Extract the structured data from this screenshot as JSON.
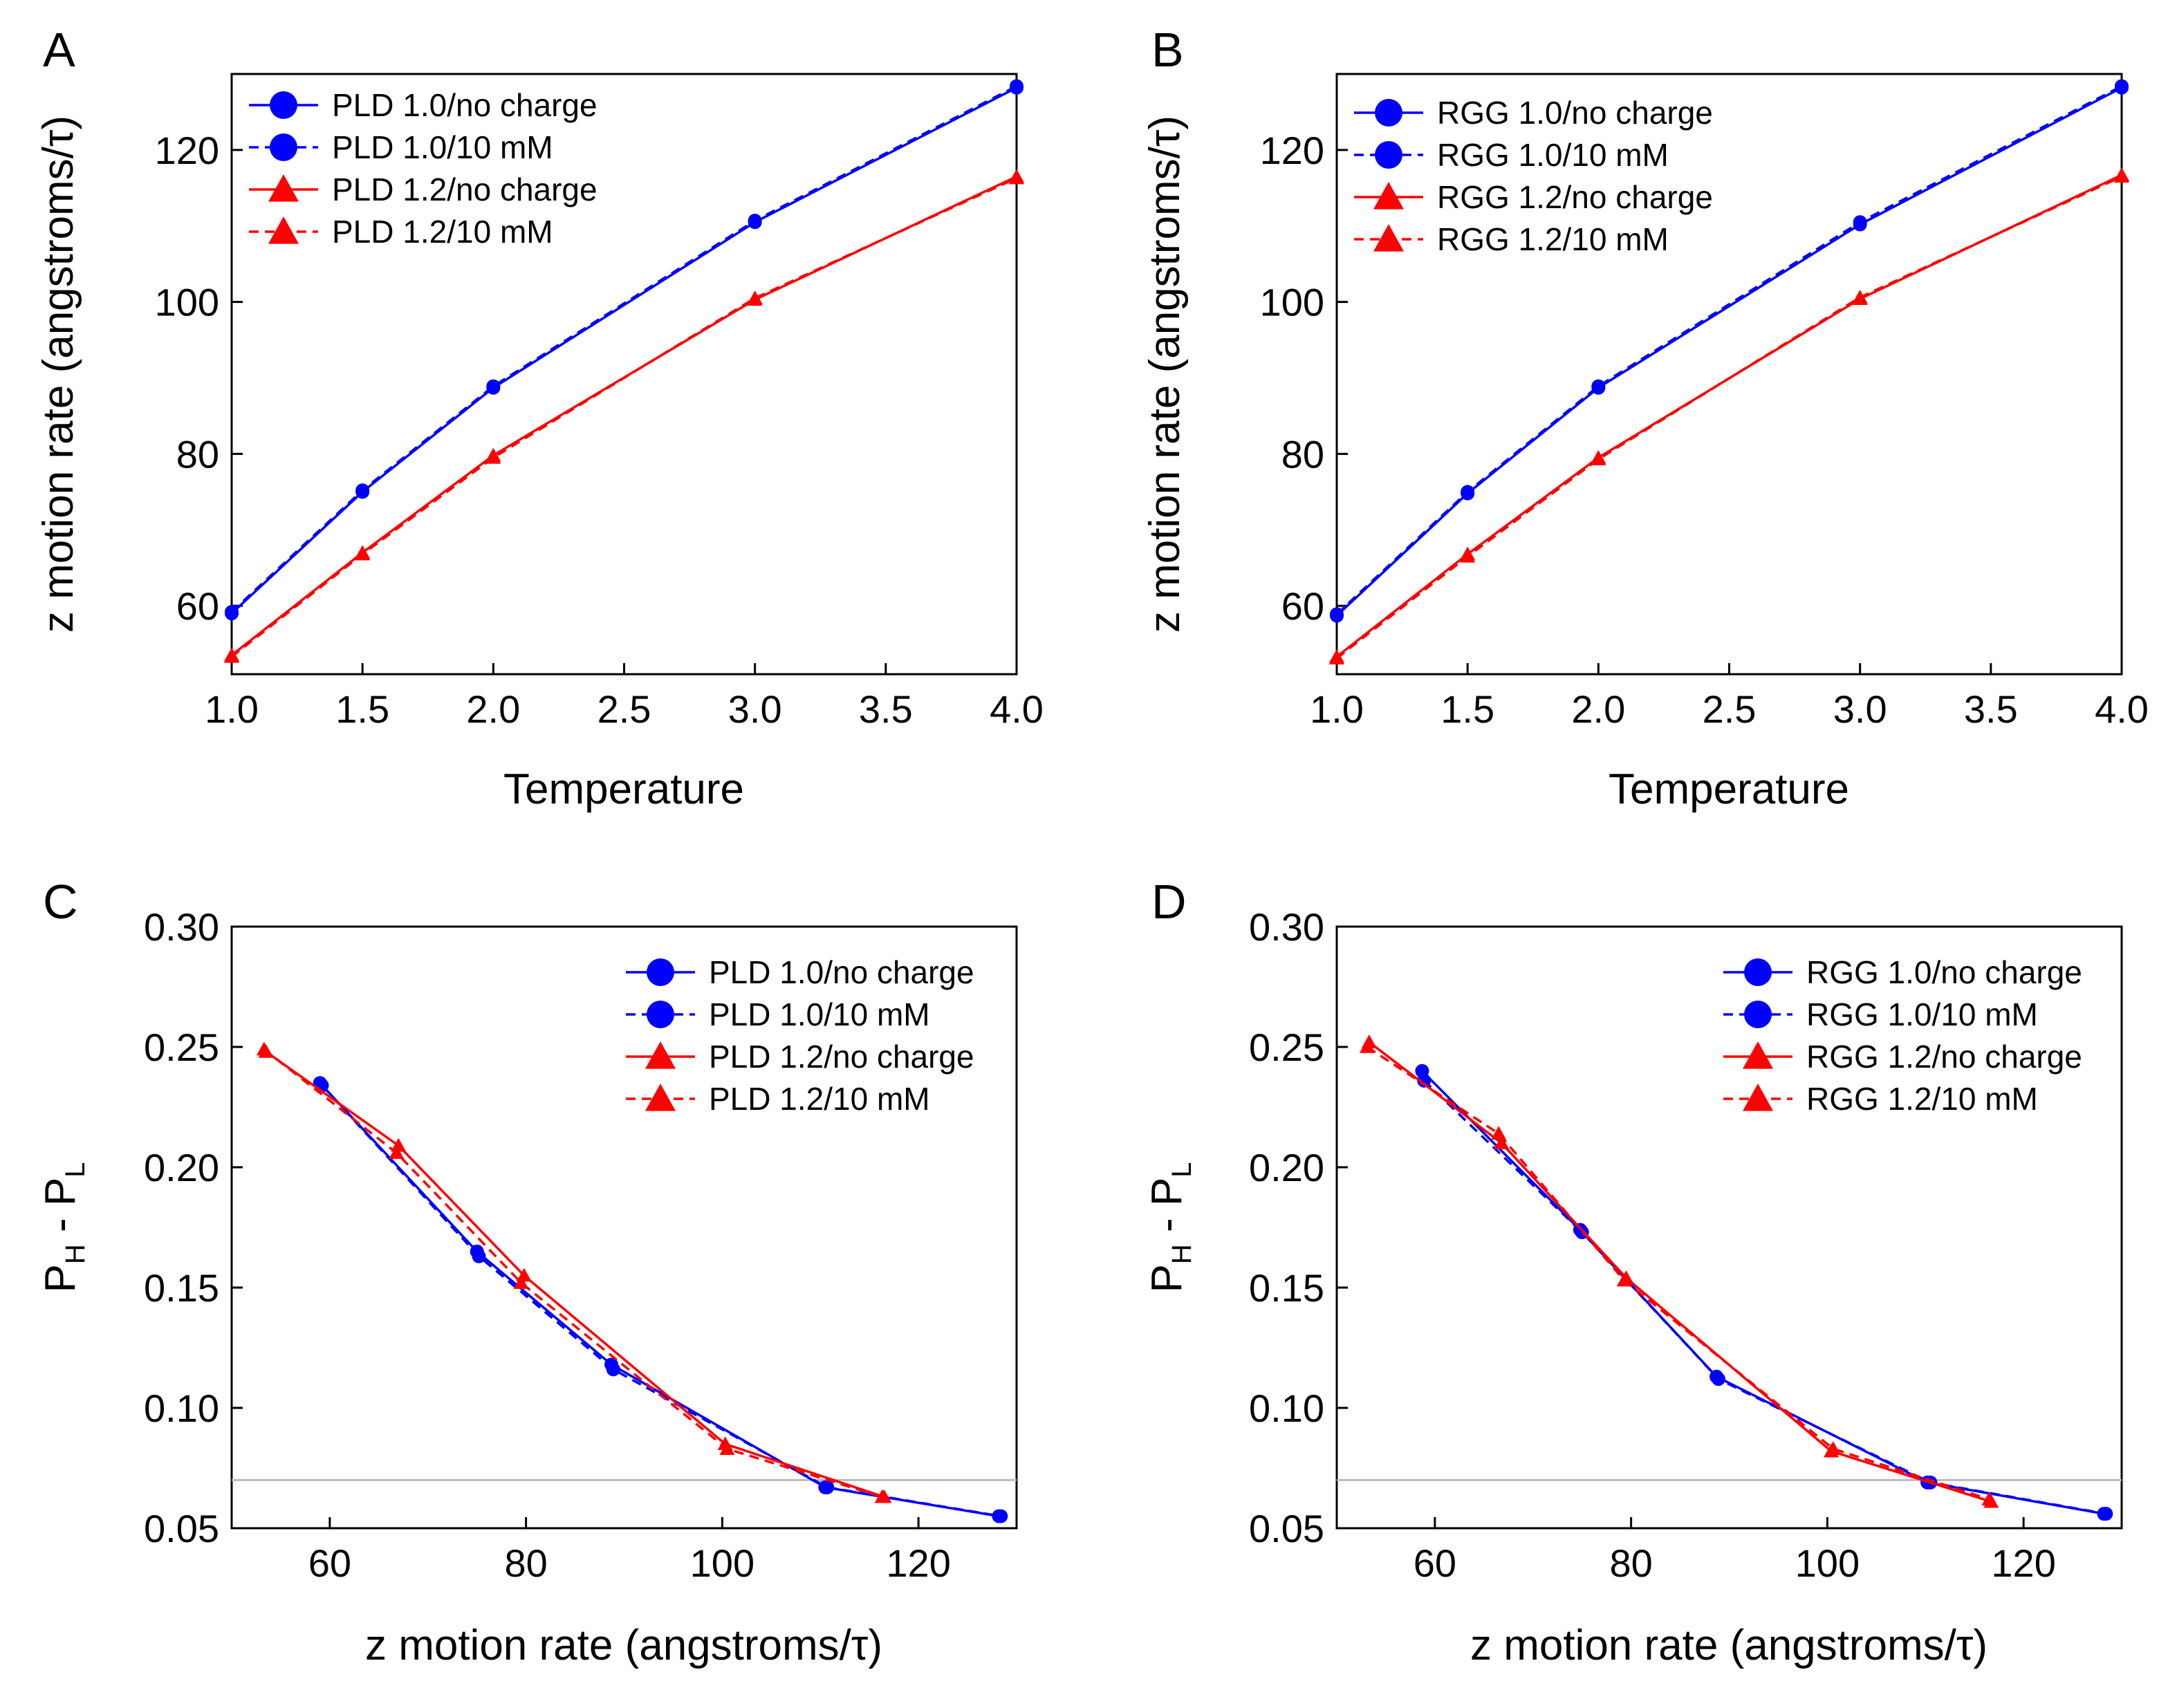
{
  "figure": {
    "colors": {
      "blue": "#0000FF",
      "red": "#FF0000",
      "ref_line": "#BBBBBB",
      "axis": "#000000"
    }
  },
  "chart_data": [
    {
      "id": "A",
      "panel_label": "A",
      "type": "line",
      "xlabel": "Temperature",
      "ylabel": "z motion rate (angstroms/τ)",
      "xlim": [
        1.0,
        4.0
      ],
      "ylim": [
        51,
        130
      ],
      "xticks": [
        1.0,
        1.5,
        2.0,
        2.5,
        3.0,
        3.5,
        4.0
      ],
      "xtick_labels": [
        "1.0",
        "1.5",
        "2.0",
        "2.5",
        "3.0",
        "3.5",
        "4.0"
      ],
      "yticks": [
        60,
        80,
        100,
        120
      ],
      "ytick_labels": [
        "60",
        "80",
        "100",
        "120"
      ],
      "legend_position": "top-left",
      "series": [
        {
          "name": "PLD 1.0/no charge",
          "color": "#0000FF",
          "style": "solid",
          "marker": "circle",
          "x": [
            1.0,
            1.5,
            2.0,
            3.0,
            4.0
          ],
          "y": [
            59.0,
            75.0,
            88.7,
            110.5,
            128.2
          ]
        },
        {
          "name": "PLD 1.0/10 mM",
          "color": "#0000FF",
          "style": "dashed",
          "marker": "circle",
          "x": [
            1.0,
            1.5,
            2.0,
            3.0,
            4.0
          ],
          "y": [
            59.2,
            75.2,
            88.9,
            110.7,
            128.4
          ]
        },
        {
          "name": "PLD 1.2/no charge",
          "color": "#FF0000",
          "style": "solid",
          "marker": "triangle",
          "x": [
            1.0,
            1.5,
            2.0,
            3.0,
            4.0
          ],
          "y": [
            53.5,
            67.0,
            79.8,
            100.3,
            116.5
          ]
        },
        {
          "name": "PLD 1.2/10 mM",
          "color": "#FF0000",
          "style": "dashed",
          "marker": "triangle",
          "x": [
            1.0,
            1.5,
            2.0,
            3.0,
            4.0
          ],
          "y": [
            53.3,
            66.8,
            79.5,
            100.5,
            116.3
          ]
        }
      ]
    },
    {
      "id": "B",
      "panel_label": "B",
      "type": "line",
      "xlabel": "Temperature",
      "ylabel": "z motion rate (angstroms/τ)",
      "xlim": [
        1.0,
        4.0
      ],
      "ylim": [
        51,
        130
      ],
      "xticks": [
        1.0,
        1.5,
        2.0,
        2.5,
        3.0,
        3.5,
        4.0
      ],
      "xtick_labels": [
        "1.0",
        "1.5",
        "2.0",
        "2.5",
        "3.0",
        "3.5",
        "4.0"
      ],
      "yticks": [
        60,
        80,
        100,
        120
      ],
      "ytick_labels": [
        "60",
        "80",
        "100",
        "120"
      ],
      "legend_position": "top-left",
      "series": [
        {
          "name": "RGG 1.0/no charge",
          "color": "#0000FF",
          "style": "solid",
          "marker": "circle",
          "x": [
            1.0,
            1.5,
            2.0,
            3.0,
            4.0
          ],
          "y": [
            58.7,
            74.8,
            88.7,
            110.2,
            128.2
          ]
        },
        {
          "name": "RGG 1.0/10 mM",
          "color": "#0000FF",
          "style": "dashed",
          "marker": "circle",
          "x": [
            1.0,
            1.5,
            2.0,
            3.0,
            4.0
          ],
          "y": [
            58.9,
            75.0,
            88.9,
            110.5,
            128.4
          ]
        },
        {
          "name": "RGG 1.2/no charge",
          "color": "#FF0000",
          "style": "solid",
          "marker": "triangle",
          "x": [
            1.0,
            1.5,
            2.0,
            3.0,
            4.0
          ],
          "y": [
            53.3,
            66.8,
            79.5,
            100.4,
            116.7
          ]
        },
        {
          "name": "RGG 1.2/10 mM",
          "color": "#FF0000",
          "style": "dashed",
          "marker": "triangle",
          "x": [
            1.0,
            1.5,
            2.0,
            3.0,
            4.0
          ],
          "y": [
            53.1,
            66.5,
            79.3,
            100.6,
            116.5
          ]
        }
      ]
    },
    {
      "id": "C",
      "panel_label": "C",
      "type": "line",
      "xlabel": "z motion rate (angstroms/τ)",
      "ylabel_main": "P",
      "ylabel_sub1": "H",
      "ylabel_mid": " - P",
      "ylabel_sub2": "L",
      "xlim": [
        50,
        130
      ],
      "ylim": [
        0.05,
        0.3
      ],
      "xticks": [
        60,
        80,
        100,
        120
      ],
      "xtick_labels": [
        "60",
        "80",
        "100",
        "120"
      ],
      "yticks": [
        0.05,
        0.1,
        0.15,
        0.2,
        0.25,
        0.3
      ],
      "ytick_labels": [
        "0.05",
        "0.10",
        "0.15",
        "0.20",
        "0.25",
        "0.30"
      ],
      "reference_line_y": 0.07,
      "legend_position": "top-right",
      "series": [
        {
          "name": "PLD 1.0/no charge",
          "color": "#0000FF",
          "style": "solid",
          "marker": "circle",
          "x": [
            59.0,
            75.0,
            88.7,
            110.5,
            128.2
          ],
          "y": [
            0.235,
            0.165,
            0.118,
            0.067,
            0.055
          ]
        },
        {
          "name": "PLD 1.0/10 mM",
          "color": "#0000FF",
          "style": "dashed",
          "marker": "circle",
          "x": [
            59.2,
            75.2,
            88.9,
            110.7,
            128.4
          ],
          "y": [
            0.234,
            0.163,
            0.116,
            0.067,
            0.055
          ]
        },
        {
          "name": "PLD 1.2/no charge",
          "color": "#FF0000",
          "style": "solid",
          "marker": "triangle",
          "x": [
            53.5,
            67.0,
            79.8,
            100.3,
            116.5
          ],
          "y": [
            0.248,
            0.209,
            0.155,
            0.085,
            0.063
          ]
        },
        {
          "name": "PLD 1.2/10 mM",
          "color": "#FF0000",
          "style": "dashed",
          "marker": "triangle",
          "x": [
            53.3,
            66.8,
            79.5,
            100.5,
            116.3
          ],
          "y": [
            0.249,
            0.206,
            0.152,
            0.083,
            0.063
          ]
        }
      ]
    },
    {
      "id": "D",
      "panel_label": "D",
      "type": "line",
      "xlabel": "z motion rate (angstroms/τ)",
      "ylabel_main": "P",
      "ylabel_sub1": "H",
      "ylabel_mid": " - P",
      "ylabel_sub2": "L",
      "xlim": [
        50,
        130
      ],
      "ylim": [
        0.05,
        0.3
      ],
      "xticks": [
        60,
        80,
        100,
        120
      ],
      "xtick_labels": [
        "60",
        "80",
        "100",
        "120"
      ],
      "yticks": [
        0.05,
        0.1,
        0.15,
        0.2,
        0.25,
        0.3
      ],
      "ytick_labels": [
        "0.05",
        "0.10",
        "0.15",
        "0.20",
        "0.25",
        "0.30"
      ],
      "reference_line_y": 0.07,
      "legend_position": "top-right",
      "series": [
        {
          "name": "RGG 1.0/no charge",
          "color": "#0000FF",
          "style": "solid",
          "marker": "circle",
          "x": [
            58.7,
            74.8,
            88.7,
            110.2,
            128.2
          ],
          "y": [
            0.24,
            0.174,
            0.113,
            0.069,
            0.056
          ]
        },
        {
          "name": "RGG 1.0/10 mM",
          "color": "#0000FF",
          "style": "dashed",
          "marker": "circle",
          "x": [
            58.9,
            75.0,
            88.9,
            110.5,
            128.4
          ],
          "y": [
            0.236,
            0.173,
            0.112,
            0.069,
            0.056
          ]
        },
        {
          "name": "RGG 1.2/no charge",
          "color": "#FF0000",
          "style": "solid",
          "marker": "triangle",
          "x": [
            53.3,
            66.8,
            79.5,
            100.4,
            116.7
          ],
          "y": [
            0.252,
            0.21,
            0.154,
            0.082,
            0.061
          ]
        },
        {
          "name": "RGG 1.2/10 mM",
          "color": "#FF0000",
          "style": "dashed",
          "marker": "triangle",
          "x": [
            53.1,
            66.5,
            79.3,
            100.6,
            116.5
          ],
          "y": [
            0.25,
            0.214,
            0.153,
            0.083,
            0.062
          ]
        }
      ]
    }
  ]
}
